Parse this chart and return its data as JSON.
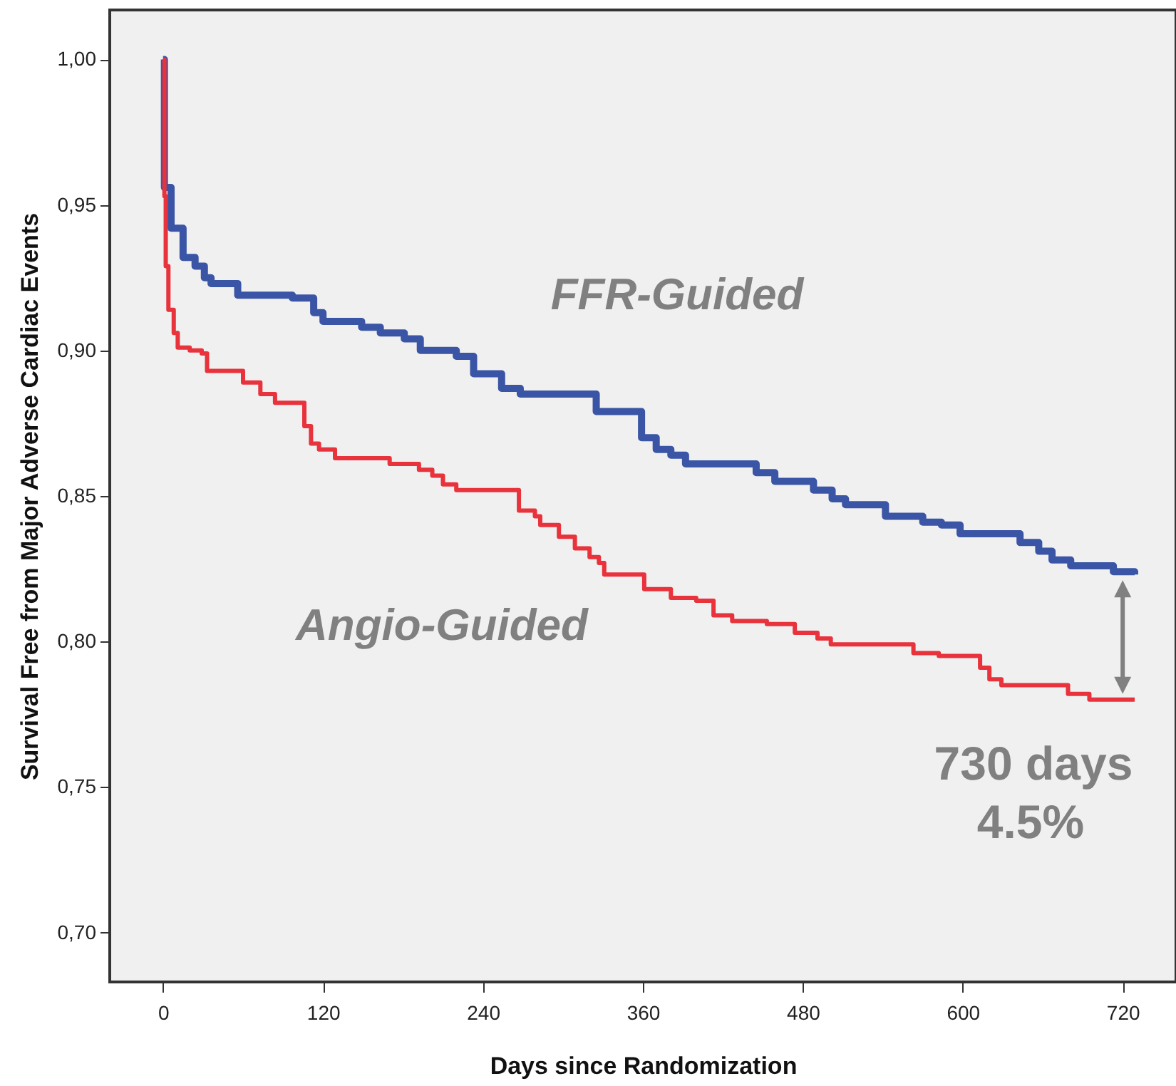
{
  "chart_data": {
    "type": "step",
    "xlabel": "Days since Randomization",
    "ylabel": "Survival Free from Major Adverse Cardiac Events",
    "xlim": [
      -40,
      760
    ],
    "xticks": [
      0,
      120,
      240,
      360,
      480,
      600,
      720
    ],
    "ylim": [
      0.683,
      1.017
    ],
    "yticks": [
      {
        "value": 0.7,
        "label": "0,70"
      },
      {
        "value": 0.75,
        "label": "0,75"
      },
      {
        "value": 0.8,
        "label": "0,80"
      },
      {
        "value": 0.85,
        "label": "0,85"
      },
      {
        "value": 0.9,
        "label": "0,90"
      },
      {
        "value": 0.95,
        "label": "0,95"
      },
      {
        "value": 1.0,
        "label": "1,00"
      }
    ],
    "series": [
      {
        "name": "FFR-Guided",
        "color": "#3a55a5",
        "x": [
          0,
          1,
          6,
          15,
          24,
          31,
          36,
          56,
          97,
          113,
          120,
          149,
          163,
          181,
          193,
          220,
          233,
          254,
          268,
          325,
          359,
          370,
          381,
          392,
          445,
          459,
          488,
          502,
          512,
          542,
          570,
          584,
          598,
          643,
          657,
          667,
          681,
          713,
          729
        ],
        "values": [
          1.0,
          0.956,
          0.942,
          0.932,
          0.929,
          0.925,
          0.923,
          0.919,
          0.918,
          0.913,
          0.91,
          0.908,
          0.906,
          0.904,
          0.9,
          0.898,
          0.892,
          0.887,
          0.885,
          0.879,
          0.87,
          0.866,
          0.864,
          0.861,
          0.858,
          0.855,
          0.852,
          0.849,
          0.847,
          0.843,
          0.841,
          0.84,
          0.837,
          0.834,
          0.831,
          0.828,
          0.826,
          0.824,
          0.823
        ]
      },
      {
        "name": "Angio-Guided",
        "color": "#e8323c",
        "x": [
          0,
          1,
          2,
          4,
          8,
          11,
          20,
          29,
          33,
          60,
          73,
          84,
          106,
          111,
          117,
          129,
          170,
          192,
          202,
          210,
          220,
          267,
          279,
          283,
          297,
          309,
          320,
          327,
          331,
          361,
          381,
          400,
          413,
          427,
          453,
          474,
          491,
          501,
          563,
          582,
          613,
          620,
          629,
          679,
          695,
          729
        ],
        "values": [
          1.0,
          0.953,
          0.929,
          0.914,
          0.906,
          0.901,
          0.9,
          0.899,
          0.893,
          0.889,
          0.885,
          0.882,
          0.874,
          0.868,
          0.866,
          0.863,
          0.861,
          0.859,
          0.857,
          0.854,
          0.852,
          0.845,
          0.843,
          0.84,
          0.836,
          0.832,
          0.829,
          0.827,
          0.823,
          0.818,
          0.815,
          0.814,
          0.809,
          0.807,
          0.806,
          0.803,
          0.801,
          0.799,
          0.796,
          0.795,
          0.791,
          0.787,
          0.785,
          0.782,
          0.78,
          0.78
        ]
      }
    ],
    "annotations": [
      "730 days",
      "4.5%"
    ]
  }
}
